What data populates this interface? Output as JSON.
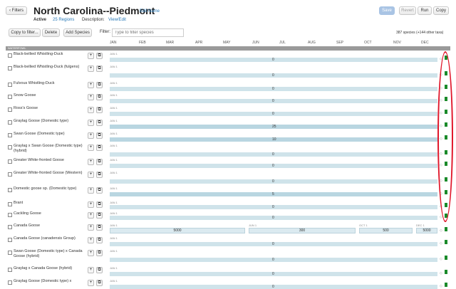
{
  "header": {
    "filters_label": "Filters",
    "title": "North Carolina--Piedmont",
    "edit_name": "Edit Name",
    "active": "Active",
    "regions": "25 Regions",
    "description_label": "Description:",
    "view_edit": "View/Edit",
    "save": "Save",
    "revert": "Revert",
    "run": "Run",
    "copy": "Copy"
  },
  "toolbar": {
    "copy_to_filter": "Copy to filter...",
    "delete": "Delete",
    "add_species": "Add Species",
    "filter_label": "Filter:",
    "filter_placeholder": "Type to filter species",
    "species_count": "387 species (+144 other taxa)"
  },
  "months": [
    "JAN",
    "FEB",
    "MAR",
    "APR",
    "MAY",
    "JUN",
    "JUL",
    "AUG",
    "SEP",
    "OCT",
    "NOV",
    "DEC"
  ],
  "category": "WATERFOWL",
  "icons": {
    "add": "plus-icon",
    "copy": "copy-icon",
    "status": "green-square-icon"
  },
  "start_label": "JAN 1",
  "rows": [
    {
      "name": "Black-bellied Whistling-Duck",
      "value": "0"
    },
    {
      "name": "Black-bellied Whistling-Duck (fulgens)",
      "value": "0"
    },
    {
      "name": "Fulvous Whistling-Duck",
      "value": "0"
    },
    {
      "name": "Snow Goose",
      "value": "0"
    },
    {
      "name": "Ross's Goose",
      "value": "0"
    },
    {
      "name": "Graylag Goose (Domestic type)",
      "value": "25"
    },
    {
      "name": "Swan Goose (Domestic type)",
      "value": "10"
    },
    {
      "name": "Graylag x Swan Goose (Domestic type) (hybrid)",
      "value": "0"
    },
    {
      "name": "Greater White-fronted Goose",
      "value": "0"
    },
    {
      "name": "Greater White-fronted Goose (Western)",
      "value": "0"
    },
    {
      "name": "Domestic goose sp. (Domestic type)",
      "value": "5"
    },
    {
      "name": "Brant",
      "value": "0"
    },
    {
      "name": "Cackling Goose",
      "value": "0"
    }
  ],
  "canada": {
    "name": "Canada Goose",
    "segments": [
      {
        "label": "JAN 1",
        "value": "5000"
      },
      {
        "label": "JUN 1",
        "value": "300"
      },
      {
        "label": "OCT 1",
        "value": "500"
      },
      {
        "label": "DEC 1",
        "value": "5000"
      }
    ]
  },
  "rows2": [
    {
      "name": "Canada Goose (canadensis Group)",
      "value": "0"
    },
    {
      "name": "Swan Goose (Domestic type) x Canada Goose (hybrid)",
      "value": "0"
    },
    {
      "name": "Graylag x Canada Goose (hybrid)",
      "value": "0"
    },
    {
      "name": "Graylag Goose (Domestic type) x",
      "value": "0"
    }
  ]
}
